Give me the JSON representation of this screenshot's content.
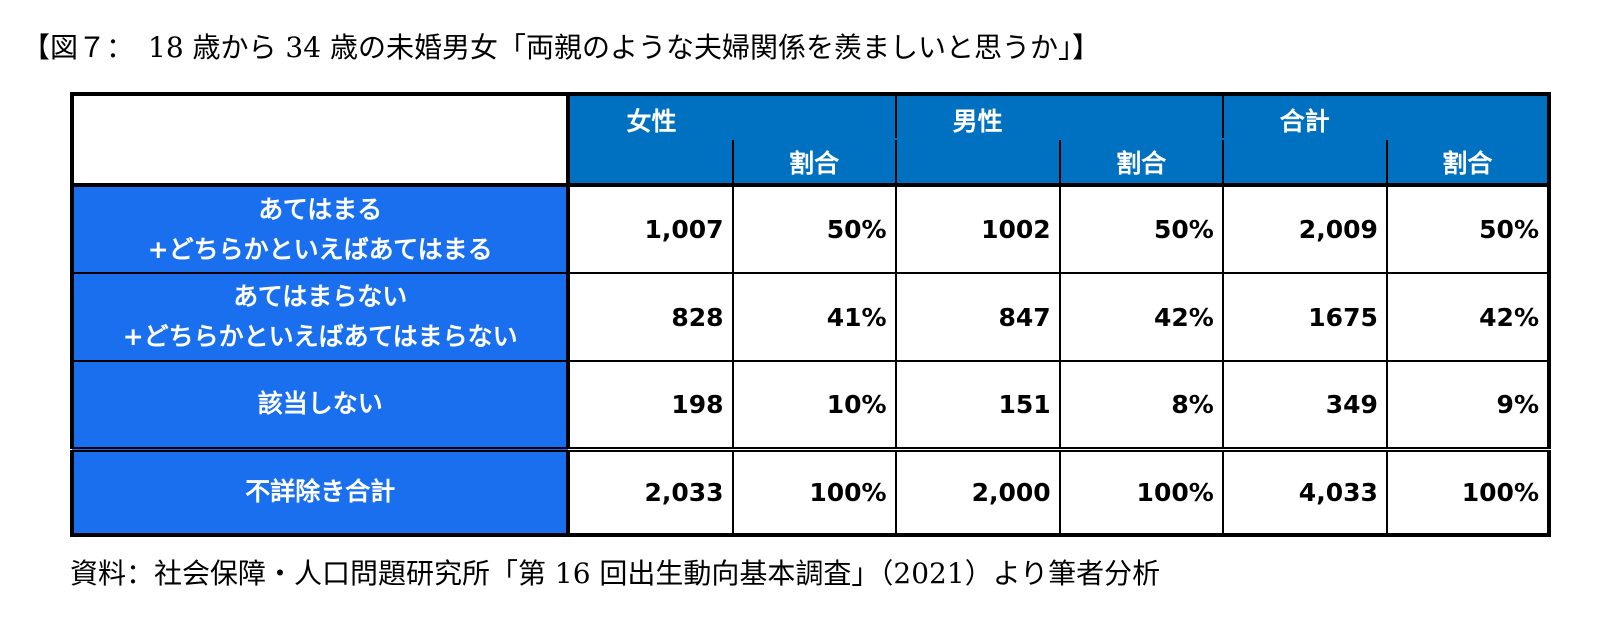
{
  "title": "【図７：　18 歳から 34 歳の未婚男女「両親のような夫婦関係を羨ましいと思うか」】",
  "source": "資料：社会保障・人口問題研究所「第 16 回出生動向基本調査」（2021）より筆者分析",
  "table": {
    "groups": [
      "女性",
      "男性",
      "合計"
    ],
    "ratio_label": "割合",
    "rows": [
      {
        "label_line1": "あてはまる",
        "label_line2": "+どちらかといえばあてはまる",
        "values": [
          "1,007",
          "50%",
          "1002",
          "50%",
          "2,009",
          "50%"
        ]
      },
      {
        "label_line1": "あてはまらない",
        "label_line2": "+どちらかといえばあてはまらない",
        "values": [
          "828",
          "41%",
          "847",
          "42%",
          "1675",
          "42%"
        ]
      },
      {
        "label_line1": "該当しない",
        "label_line2": "",
        "values": [
          "198",
          "10%",
          "151",
          "8%",
          "349",
          "9%"
        ]
      },
      {
        "label_line1": "不詳除き合計",
        "label_line2": "",
        "values": [
          "2,033",
          "100%",
          "2,000",
          "100%",
          "4,033",
          "100%"
        ]
      }
    ]
  },
  "colors": {
    "header_bg": "#0070C0",
    "row_label_bg": "#1a6fef"
  }
}
